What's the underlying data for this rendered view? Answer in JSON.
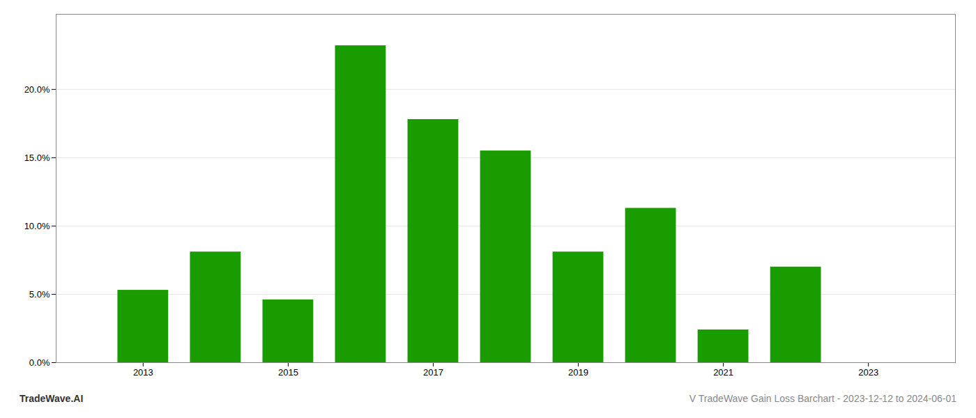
{
  "chart_data": {
    "type": "bar",
    "x": [
      2013,
      2014,
      2015,
      2016,
      2017,
      2018,
      2019,
      2020,
      2021,
      2022
    ],
    "values": [
      0.053,
      0.081,
      0.046,
      0.232,
      0.178,
      0.155,
      0.081,
      0.113,
      0.024,
      0.07
    ],
    "color": "#1a9b00",
    "xlim": [
      2011.8,
      2024.2
    ],
    "xticks": [
      2013,
      2015,
      2017,
      2019,
      2021,
      2023
    ],
    "ylim": [
      0,
      0.255
    ],
    "yticks": [
      {
        "value": 0.0,
        "label": "0.0%"
      },
      {
        "value": 0.05,
        "label": "5.0%"
      },
      {
        "value": 0.1,
        "label": "10.0%"
      },
      {
        "value": 0.15,
        "label": "15.0%"
      },
      {
        "value": 0.2,
        "label": "20.0%"
      }
    ],
    "grid": true,
    "annotations": [
      "TradeWave.AI",
      "V TradeWave Gain Loss Barchart - 2023-12-12 to 2024-06-01"
    ]
  }
}
